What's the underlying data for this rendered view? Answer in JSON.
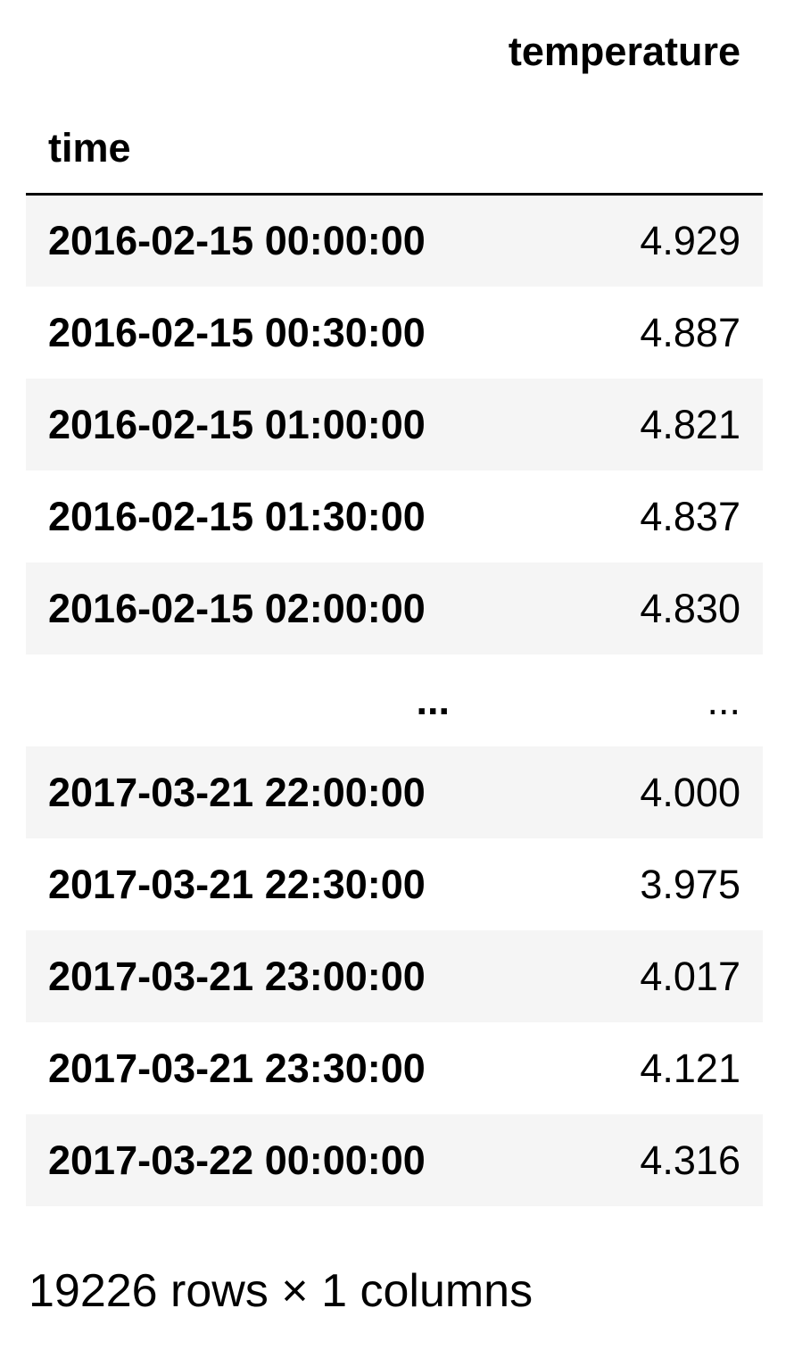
{
  "table": {
    "value_column_header": "temperature",
    "index_name": "time",
    "rows": [
      {
        "index": "2016-02-15 00:00:00",
        "temperature": "4.929"
      },
      {
        "index": "2016-02-15 00:30:00",
        "temperature": "4.887"
      },
      {
        "index": "2016-02-15 01:00:00",
        "temperature": "4.821"
      },
      {
        "index": "2016-02-15 01:30:00",
        "temperature": "4.837"
      },
      {
        "index": "2016-02-15 02:00:00",
        "temperature": "4.830"
      },
      {
        "index": "...",
        "temperature": "..."
      },
      {
        "index": "2017-03-21 22:00:00",
        "temperature": "4.000"
      },
      {
        "index": "2017-03-21 22:30:00",
        "temperature": "3.975"
      },
      {
        "index": "2017-03-21 23:00:00",
        "temperature": "4.017"
      },
      {
        "index": "2017-03-21 23:30:00",
        "temperature": "4.121"
      },
      {
        "index": "2017-03-22 00:00:00",
        "temperature": "4.316"
      }
    ]
  },
  "shape_caption": "19226 rows × 1 columns"
}
